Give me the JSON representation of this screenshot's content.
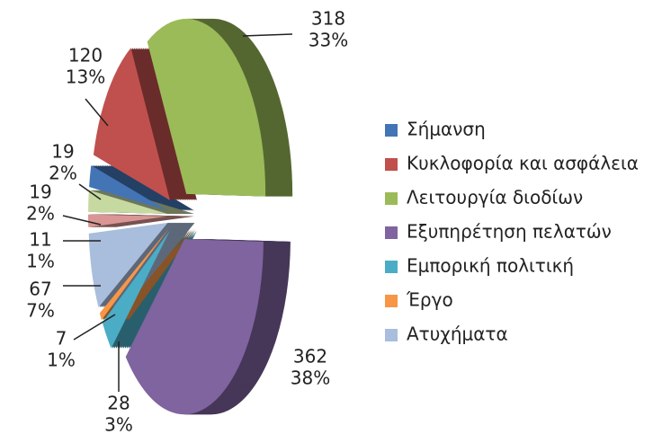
{
  "chart_data": {
    "type": "pie",
    "categories": [
      "Σήμανση",
      "Κυκλοφορία και ασφάλεια",
      "Λειτουργία διοδίων",
      "Εξυπηρέτηση πελατών",
      "Εμπορική πολιτική",
      "Έργο",
      "Ατυχήματα",
      null,
      null
    ],
    "values": [
      19,
      120,
      318,
      362,
      28,
      7,
      67,
      11,
      19
    ],
    "value_labels": [
      "19",
      "120",
      "318",
      "362",
      "28",
      "7",
      "67",
      "11",
      "19"
    ],
    "percent_labels": [
      "2%",
      "13%",
      "33%",
      "38%",
      "3%",
      "1%",
      "7%",
      "1%",
      "2%"
    ],
    "colors": [
      "#4374b5",
      "#c0504d",
      "#9bbb59",
      "#7f64a0",
      "#4bacc6",
      "#f79646",
      "#a9bddd",
      "#d99694",
      "#c6d9a0"
    ],
    "legend": "right"
  }
}
